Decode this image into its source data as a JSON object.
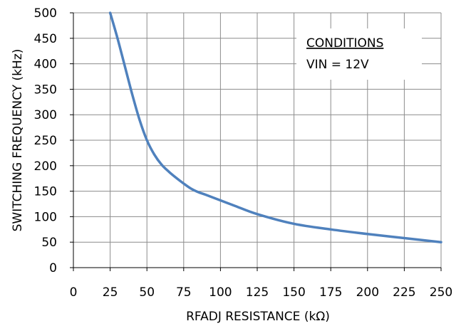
{
  "chart_data": {
    "type": "line",
    "xlabel": "RFADJ RESISTANCE (kΩ)",
    "ylabel": "SWITCHING FREQUENCY (kHz)",
    "xlim": [
      0,
      250
    ],
    "ylim": [
      0,
      500
    ],
    "x_ticks": [
      "0",
      "25",
      "50",
      "75",
      "100",
      "125",
      "150",
      "175",
      "200",
      "225",
      "250"
    ],
    "y_ticks": [
      "0",
      "50",
      "100",
      "150",
      "200",
      "250",
      "300",
      "350",
      "400",
      "450",
      "500"
    ],
    "grid": true,
    "series": [
      {
        "x": [
          25,
          30,
          35,
          40,
          45,
          50,
          55,
          60,
          65,
          70,
          75,
          80,
          85,
          90,
          100,
          110,
          125,
          150,
          175,
          200,
          225,
          250
        ],
        "y": [
          500,
          450,
          395,
          340,
          290,
          250,
          222,
          202,
          188,
          176,
          165,
          155,
          148,
          143,
          132,
          121,
          105,
          86,
          75,
          66,
          58,
          50
        ]
      }
    ],
    "annotation": {
      "heading": "CONDITIONS",
      "line1": "VIN = 12V"
    },
    "colors": {
      "line": "#4F81BD",
      "grid": "#8C8C8C",
      "axis": "#000000"
    }
  }
}
